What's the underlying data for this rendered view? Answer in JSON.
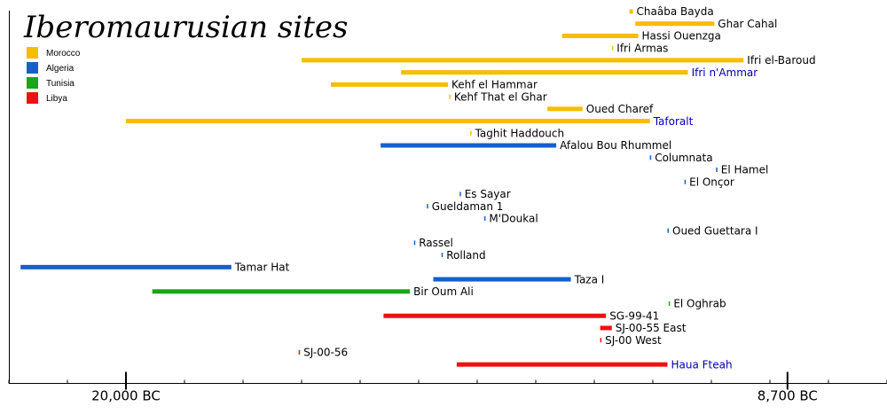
{
  "chart_data": {
    "type": "timeline",
    "title": "Iberomaurusian sites",
    "legend": [
      {
        "name": "Morocco",
        "color": "#f7bd00"
      },
      {
        "name": "Algeria",
        "color": "#1560c8"
      },
      {
        "name": "Tunisia",
        "color": "#17a817"
      },
      {
        "name": "Libya",
        "color": "#ee1111"
      }
    ],
    "xaxis": {
      "range": [
        22000,
        7000
      ],
      "ticks": [
        {
          "value": 20000,
          "label": "20,000 BC"
        },
        {
          "value": 8700,
          "label": "8,700 BC"
        }
      ],
      "minor_step": 1000
    },
    "link_color": "#0000b0",
    "sites": [
      {
        "name": "Chaâba Bayda",
        "country": "Morocco",
        "start": 11400,
        "end": 11340
      },
      {
        "name": "Ghar Cahal",
        "country": "Morocco",
        "start": 11300,
        "end": 9950
      },
      {
        "name": "Hassi Ouenzga",
        "country": "Morocco",
        "start": 12550,
        "end": 11250
      },
      {
        "name": "Ifri Armas",
        "country": "Morocco",
        "start": 11700,
        "end": 11680
      },
      {
        "name": "Ifri el-Baroud",
        "country": "Morocco",
        "start": 17000,
        "end": 9450
      },
      {
        "name": "Ifri n'Ammar",
        "country": "Morocco",
        "start": 15300,
        "end": 10400,
        "link": true
      },
      {
        "name": "Kehf el Hammar",
        "country": "Morocco",
        "start": 16500,
        "end": 14500
      },
      {
        "name": "Kehf That el Ghar",
        "country": "Morocco",
        "start": 14480,
        "end": 14460
      },
      {
        "name": "Oued Charef",
        "country": "Morocco",
        "start": 12800,
        "end": 12200
      },
      {
        "name": "Taforalt",
        "country": "Morocco",
        "start": 20000,
        "end": 11050,
        "link": true
      },
      {
        "name": "Taghit Haddouch",
        "country": "Morocco",
        "start": 14120,
        "end": 14100
      },
      {
        "name": "Afalou Bou Rhummel",
        "country": "Algeria",
        "start": 15650,
        "end": 12650
      },
      {
        "name": "Columnata",
        "country": "Algeria",
        "start": 11050,
        "end": 11030
      },
      {
        "name": "El Hamel",
        "country": "Algeria",
        "start": 9920,
        "end": 9900
      },
      {
        "name": "El Onçor",
        "country": "Algeria",
        "start": 10460,
        "end": 10440
      },
      {
        "name": "Es Sayar",
        "country": "Algeria",
        "start": 14300,
        "end": 14280
      },
      {
        "name": "Gueldaman 1",
        "country": "Algeria",
        "start": 14860,
        "end": 14840
      },
      {
        "name": "M'Doukal",
        "country": "Algeria",
        "start": 13880,
        "end": 13860
      },
      {
        "name": "Oued Guettara I",
        "country": "Algeria",
        "start": 10750,
        "end": 10730
      },
      {
        "name": "Rassel",
        "country": "Algeria",
        "start": 15080,
        "end": 15060
      },
      {
        "name": "Rolland",
        "country": "Algeria",
        "start": 14610,
        "end": 14590
      },
      {
        "name": "Tamar Hat",
        "country": "Algeria",
        "start": 21800,
        "end": 18200
      },
      {
        "name": "Taza I",
        "country": "Algeria",
        "start": 14750,
        "end": 12400
      },
      {
        "name": "Bir Oum Ali",
        "country": "Tunisia",
        "start": 19550,
        "end": 15150
      },
      {
        "name": "El Oghrab",
        "country": "Tunisia",
        "start": 10730,
        "end": 10710
      },
      {
        "name": "SG-99-41",
        "country": "Libya",
        "start": 15600,
        "end": 11800
      },
      {
        "name": "SJ-00-55 East",
        "country": "Libya",
        "start": 11900,
        "end": 11700
      },
      {
        "name": "SJ-00 West",
        "country": "Libya",
        "start": 11900,
        "end": 11880
      },
      {
        "name": "SJ-00-56",
        "country": "Libya",
        "start": 17050,
        "end": 17030
      },
      {
        "name": "Haua Fteah",
        "country": "Libya",
        "start": 14350,
        "end": 10750,
        "link": true
      }
    ]
  }
}
